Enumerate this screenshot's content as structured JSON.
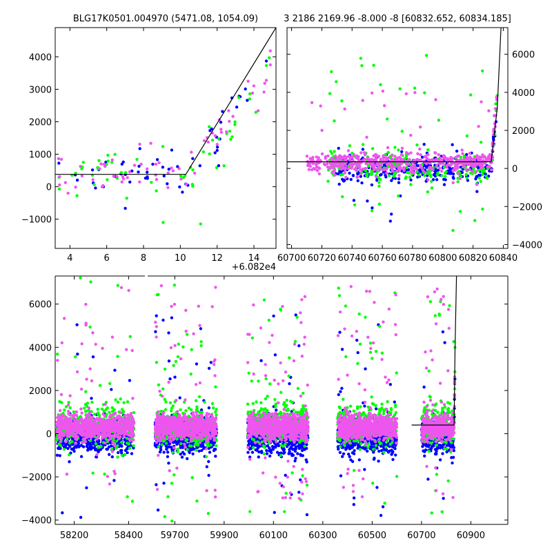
{
  "chart_data": [
    {
      "type": "scatter",
      "title": "BLG17K0501.004970 (5471.08, 1054.09)",
      "xlabel": "",
      "ylabel": "",
      "x_offset_label": "+6.082e4",
      "xlim": [
        3.2,
        15.2
      ],
      "ylim": [
        -1900,
        4900
      ],
      "xticks": [
        4,
        6,
        8,
        10,
        12,
        14
      ],
      "yticks": [
        -1000,
        0,
        1000,
        2000,
        3000,
        4000
      ],
      "yaxis_side": "left",
      "grid": false,
      "series": [
        {
          "color": "#0000ff",
          "generator": {
            "seed": 11,
            "n": 55,
            "x": [
              3.3,
              15.0
            ],
            "base": 380,
            "knee": 10.3,
            "slope": 700,
            "sigma": 330,
            "outlier_frac": 0.04,
            "outlier_range": [
              -900,
              900
            ]
          }
        },
        {
          "color": "#00ff00",
          "generator": {
            "seed": 23,
            "n": 55,
            "x": [
              3.3,
              15.0
            ],
            "base": 380,
            "knee": 10.3,
            "slope": 700,
            "sigma": 420,
            "outlier_frac": 0.05,
            "outlier_range": [
              -1500,
              2000
            ]
          }
        },
        {
          "color": "#ee55ee",
          "generator": {
            "seed": 37,
            "n": 65,
            "x": [
              3.3,
              15.0
            ],
            "base": 400,
            "knee": 10.3,
            "slope": 700,
            "sigma": 330,
            "outlier_frac": 0.05,
            "outlier_range": [
              -1200,
              3700
            ]
          }
        }
      ],
      "model_line": {
        "color": "#000000",
        "points": [
          [
            3.2,
            380
          ],
          [
            10.3,
            380
          ],
          [
            15.2,
            4900
          ]
        ]
      }
    },
    {
      "type": "scatter",
      "title": "3 2186 2169.96 -8.000 -8 [60832.652, 60834.185]",
      "xlabel": "",
      "ylabel": "",
      "xlim": [
        60697,
        60843
      ],
      "ylim": [
        -4200,
        7400
      ],
      "xticks": [
        60700,
        60720,
        60740,
        60760,
        60780,
        60800,
        60820,
        60840
      ],
      "yticks": [
        -4000,
        -2000,
        0,
        2000,
        4000,
        6000
      ],
      "yaxis_side": "right",
      "grid": false,
      "series": [
        {
          "color": "#0000ff",
          "generator": {
            "seed": 51,
            "n": 330,
            "x": [
              60728,
              60836
            ],
            "base": 0,
            "knee": 60832,
            "slope": 900,
            "sigma": 330,
            "outlier_frac": 0.05,
            "outlier_range": [
              -2800,
              1500
            ]
          }
        },
        {
          "color": "#00ff00",
          "generator": {
            "seed": 63,
            "n": 260,
            "x": [
              60724,
              60836
            ],
            "base": 100,
            "knee": 60832,
            "slope": 900,
            "sigma": 420,
            "outlier_frac": 0.12,
            "outlier_range": [
              -4000,
              6400
            ]
          }
        },
        {
          "color": "#ee55ee",
          "generator": {
            "seed": 79,
            "n": 520,
            "x": [
              60710,
              60836
            ],
            "base": 300,
            "knee": 60832,
            "slope": 900,
            "sigma": 260,
            "outlier_frac": 0.07,
            "outlier_range": [
              -1000,
              4200
            ]
          }
        }
      ],
      "model_line": {
        "color": "#000000",
        "points": [
          [
            60697,
            350
          ],
          [
            60832,
            350
          ],
          [
            60836,
            3200
          ],
          [
            60838.5,
            7400
          ]
        ]
      }
    },
    {
      "type": "scatter",
      "title": "",
      "xlabel": "",
      "ylabel": "",
      "ylim": [
        -4200,
        7300
      ],
      "yticks": [
        -4000,
        -2000,
        0,
        2000,
        4000,
        6000
      ],
      "yaxis_side": "left",
      "grid": false,
      "broken_x_axis": true,
      "segments": [
        {
          "xlim": [
            58130,
            58460
          ],
          "xticks": [
            58200,
            58400
          ]
        },
        {
          "xlim": [
            59590,
            61050
          ],
          "xticks": [
            59700,
            59900,
            60100,
            60300,
            60500,
            60700,
            60900
          ]
        }
      ],
      "clusters": [
        {
          "segment": 0,
          "x": [
            58135,
            58420
          ],
          "n": 700
        },
        {
          "segment": 1,
          "x": [
            59620,
            59870
          ],
          "n": 700
        },
        {
          "segment": 1,
          "x": [
            59995,
            60240
          ],
          "n": 750
        },
        {
          "segment": 1,
          "x": [
            60360,
            60600
          ],
          "n": 750
        },
        {
          "segment": 1,
          "x": [
            60700,
            60836
          ],
          "n": 450
        }
      ],
      "series": [
        {
          "color": "#0000ff",
          "generator": {
            "seed": 101,
            "sigma": 420,
            "center": -100,
            "outlier_frac": 0.05,
            "outlier_range": [
              -4000,
              5500
            ]
          }
        },
        {
          "color": "#00ff00",
          "generator": {
            "seed": 202,
            "sigma": 500,
            "center": 400,
            "outlier_frac": 0.1,
            "outlier_range": [
              -4200,
              7300
            ]
          }
        },
        {
          "color": "#ee55ee",
          "generator": {
            "seed": 303,
            "sigma": 280,
            "center": 300,
            "outlier_frac": 0.07,
            "outlier_range": [
              -3000,
              7000
            ]
          }
        }
      ],
      "model_line": {
        "color": "#000000",
        "points": [
          [
            60660,
            400
          ],
          [
            60832,
            400
          ],
          [
            60836,
            4000
          ],
          [
            60842,
            7300
          ]
        ]
      }
    }
  ]
}
